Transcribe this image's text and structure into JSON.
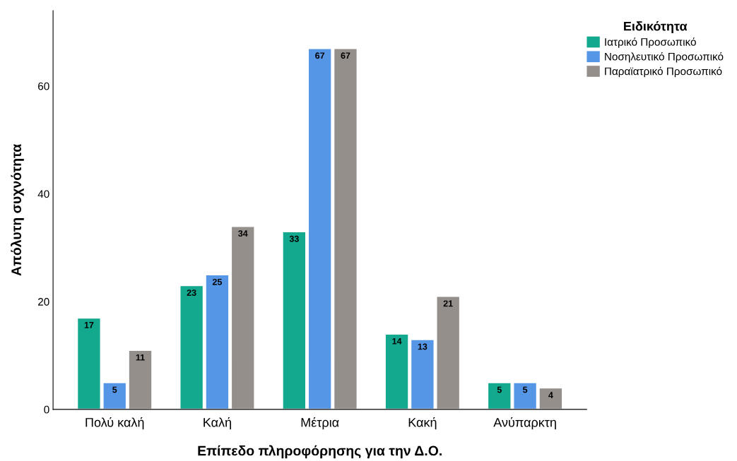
{
  "chart_data": {
    "type": "bar",
    "xlabel": "Επίπεδο πληροφόρησης για την Δ.Ο.",
    "ylabel": "Απόλυτη συχνότητα",
    "legend_title": "Ειδικότητα",
    "categories": [
      "Πολύ καλή",
      "Καλή",
      "Μέτρια",
      "Κακή",
      "Ανύπαρκτη"
    ],
    "series": [
      {
        "name": "Ιατρικό Προσωπικό",
        "color": "#13a98f",
        "values": [
          17,
          23,
          33,
          14,
          5
        ]
      },
      {
        "name": "Νοσηλευτικό Προσωπικό",
        "color": "#5596e6",
        "values": [
          5,
          25,
          67,
          13,
          5
        ]
      },
      {
        "name": "Παραϊατρικό Προσωπικό",
        "color": "#958f8c",
        "values": [
          11,
          34,
          67,
          21,
          4
        ]
      }
    ],
    "ylim": [
      0,
      74
    ],
    "yticks": [
      0,
      20,
      40,
      60
    ],
    "data_labels": true,
    "grid": false,
    "legend": "top right"
  }
}
